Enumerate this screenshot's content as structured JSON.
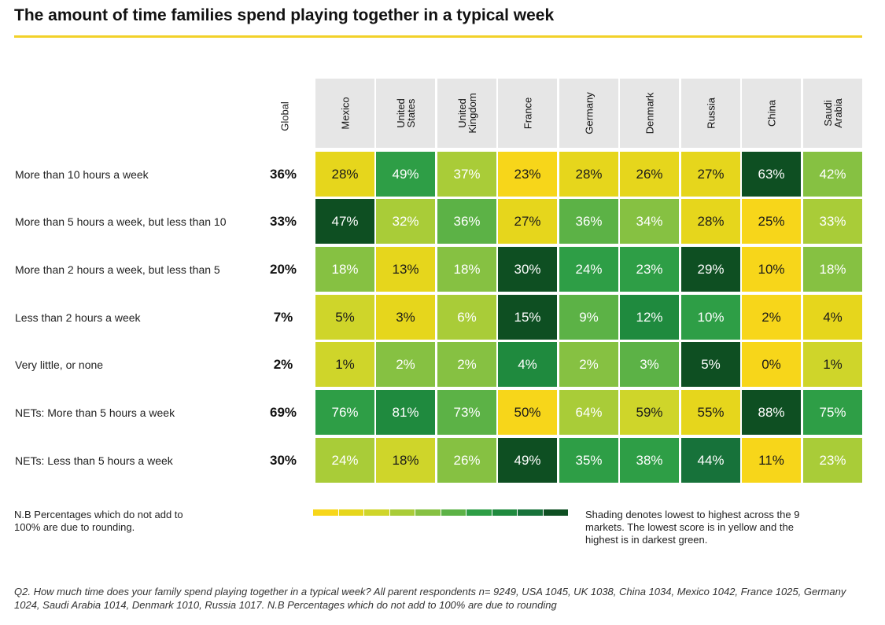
{
  "title": "The amount of time families spend playing together in a typical week",
  "colors": {
    "title_rule": "#f2d129",
    "header_bg": "#e6e6e6",
    "scale": [
      "#f7d61a",
      "#e6d61c",
      "#cfd52a",
      "#a9cc38",
      "#86c142",
      "#5cb246",
      "#2e9e46",
      "#1f8a3e",
      "#17723a",
      "#0e4f22"
    ]
  },
  "chart_data": {
    "type": "heatmap",
    "title": "The amount of time families spend playing together in a typical week",
    "global_label": "Global",
    "columns": [
      "Mexico",
      "United States",
      "United Kingdom",
      "France",
      "Germany",
      "Denmark",
      "Russia",
      "China",
      "Saudi Arabia"
    ],
    "rows": [
      {
        "label": "More than 10 hours a week",
        "global": 36,
        "values": [
          28,
          49,
          37,
          23,
          28,
          26,
          27,
          63,
          42
        ]
      },
      {
        "label": "More than 5 hours a week, but less than 10",
        "global": 33,
        "values": [
          47,
          32,
          36,
          27,
          36,
          34,
          28,
          25,
          33
        ]
      },
      {
        "label": "More than 2 hours a week, but less than 5",
        "global": 20,
        "values": [
          18,
          13,
          18,
          30,
          24,
          23,
          29,
          10,
          18
        ]
      },
      {
        "label": "Less than 2 hours a week",
        "global": 7,
        "values": [
          5,
          3,
          6,
          15,
          9,
          12,
          10,
          2,
          4
        ]
      },
      {
        "label": "Very little, or none",
        "global": 2,
        "values": [
          1,
          2,
          2,
          4,
          2,
          3,
          5,
          0,
          1
        ]
      },
      {
        "label": "NETs: More than 5 hours a week",
        "global": 69,
        "values": [
          76,
          81,
          73,
          50,
          64,
          59,
          55,
          88,
          75
        ]
      },
      {
        "label": "NETs: Less than 5 hours a week",
        "global": 30,
        "values": [
          24,
          18,
          26,
          49,
          35,
          38,
          44,
          11,
          23
        ]
      }
    ],
    "unit": "%",
    "legend": "yellow (lowest) to darkest green (highest)"
  },
  "notes": {
    "left": "N.B Percentages which do not add to 100% are due to rounding.",
    "right": "Shading denotes lowest to highest across the 9 markets. The lowest score is in yellow and the highest is in darkest green."
  },
  "footnote": "Q2. How much time does your family spend playing together in a typical week? All parent respondents n= 9249, USA 1045, UK 1038, China 1034, Mexico 1042, France 1025, Germany 1024, Saudi Arabia 1014, Denmark 1010, Russia 1017. N.B Percentages which do not add to 100% are due to rounding"
}
